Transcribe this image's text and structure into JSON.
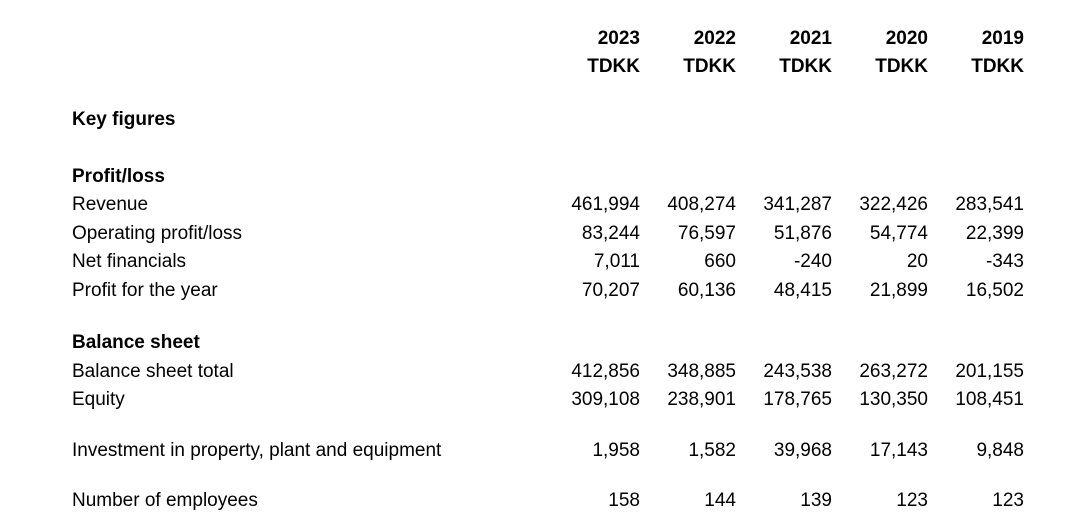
{
  "columns": [
    {
      "year": "2023",
      "unit": "TDKK"
    },
    {
      "year": "2022",
      "unit": "TDKK"
    },
    {
      "year": "2021",
      "unit": "TDKK"
    },
    {
      "year": "2020",
      "unit": "TDKK"
    },
    {
      "year": "2019",
      "unit": "TDKK"
    }
  ],
  "title": "Key figures",
  "profit_loss": {
    "heading": "Profit/loss",
    "rows": [
      {
        "label": "Revenue",
        "values": [
          "461,994",
          "408,274",
          "341,287",
          "322,426",
          "283,541"
        ]
      },
      {
        "label": "Operating profit/loss",
        "values": [
          "83,244",
          "76,597",
          "51,876",
          "54,774",
          "22,399"
        ]
      },
      {
        "label": "Net financials",
        "values": [
          "7,011",
          "660",
          "-240",
          "20",
          "-343"
        ]
      },
      {
        "label": "Profit for the year",
        "values": [
          "70,207",
          "60,136",
          "48,415",
          "21,899",
          "16,502"
        ]
      }
    ]
  },
  "balance_sheet": {
    "heading": "Balance sheet",
    "rows": [
      {
        "label": "Balance sheet total",
        "values": [
          "412,856",
          "348,885",
          "243,538",
          "263,272",
          "201,155"
        ]
      },
      {
        "label": "Equity",
        "values": [
          "309,108",
          "238,901",
          "178,765",
          "130,350",
          "108,451"
        ]
      }
    ]
  },
  "investment": {
    "label": "Investment in property, plant and equipment",
    "values": [
      "1,958",
      "1,582",
      "39,968",
      "17,143",
      "9,848"
    ]
  },
  "employees": {
    "label": "Number of employees",
    "values": [
      "158",
      "144",
      "139",
      "123",
      "123"
    ]
  }
}
